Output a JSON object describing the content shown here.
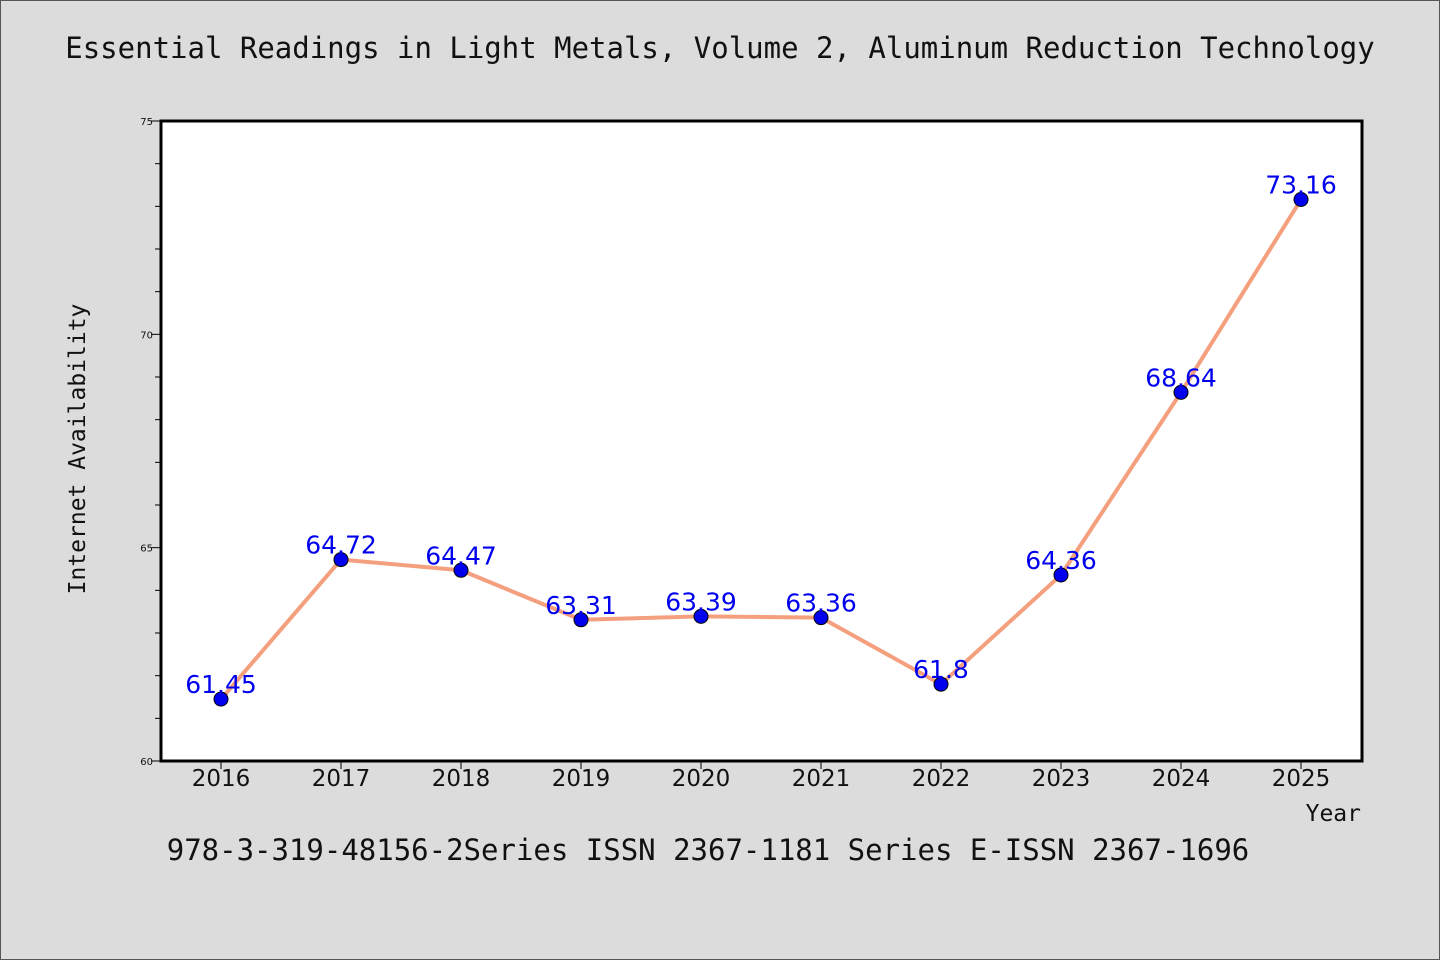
{
  "chart_data": {
    "type": "line",
    "title": "Essential Readings in Light Metals, Volume 2, Aluminum Reduction Technology",
    "footer": "978-3-319-48156-2Series ISSN 2367-1181 Series E-ISSN 2367-1696",
    "xlabel": "Year",
    "ylabel": "Internet Availability",
    "categories": [
      "2016",
      "2017",
      "2018",
      "2019",
      "2020",
      "2021",
      "2022",
      "2023",
      "2024",
      "2025"
    ],
    "values": [
      61.45,
      64.72,
      64.47,
      63.31,
      63.39,
      63.36,
      61.8,
      64.36,
      68.64,
      73.16
    ],
    "data_labels": [
      "61.45",
      "64.72",
      "64.47",
      "63.31",
      "63.39",
      "63.36",
      "61.8",
      "64.36",
      "68.64",
      "73.16"
    ],
    "ylim": [
      60,
      75
    ],
    "yticks": [
      60,
      65,
      70,
      75
    ],
    "yticks_minor_step": 1,
    "grid": false,
    "legend": "none",
    "colors": {
      "line": "#f4a07e",
      "marker": "#0000ee",
      "label": "#0000ee",
      "background": "#dcdcdc",
      "plot_background": "#ffffff"
    }
  }
}
